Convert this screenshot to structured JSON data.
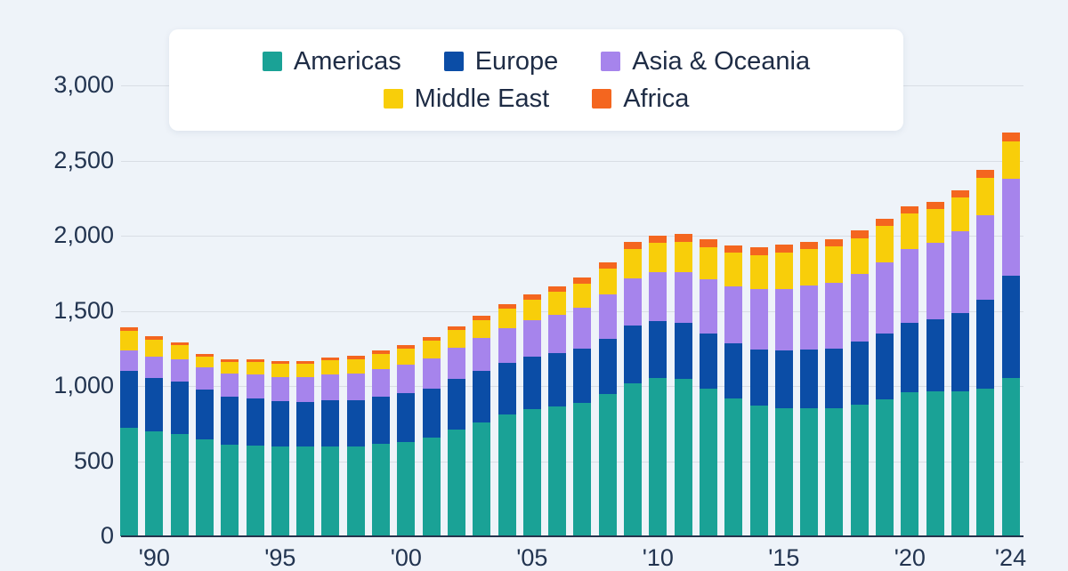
{
  "colors": {
    "background": "#eef3f9",
    "grid": "#d9dee5",
    "axis": "#24334d",
    "text": "#1e2c45",
    "americas": "#1aa296",
    "europe": "#0b4da6",
    "asia_oceania": "#a684ec",
    "middle_east": "#f8ce0a",
    "africa": "#f4661f"
  },
  "legend": {
    "rows": [
      [
        {
          "label": "Americas",
          "color": "#1aa296"
        },
        {
          "label": "Europe",
          "color": "#0b4da6"
        },
        {
          "label": "Asia & Oceania",
          "color": "#a684ec"
        }
      ],
      [
        {
          "label": "Middle East",
          "color": "#f8ce0a"
        },
        {
          "label": "Africa",
          "color": "#f4661f"
        }
      ]
    ]
  },
  "chart_data": {
    "type": "bar",
    "stacked": true,
    "title": "",
    "xlabel": "",
    "ylabel": "",
    "ylim": [
      0,
      3000
    ],
    "grid": "horizontal",
    "legend_position": "top",
    "x": [
      1989,
      1990,
      1991,
      1992,
      1993,
      1994,
      1995,
      1996,
      1997,
      1998,
      1999,
      2000,
      2001,
      2002,
      2003,
      2004,
      2005,
      2006,
      2007,
      2008,
      2009,
      2010,
      2011,
      2012,
      2013,
      2014,
      2015,
      2016,
      2017,
      2018,
      2019,
      2020,
      2021,
      2022,
      2023,
      2024
    ],
    "x_tick_labels": [
      {
        "year": 1990,
        "label": "'90"
      },
      {
        "year": 1995,
        "label": "'95"
      },
      {
        "year": 2000,
        "label": "'00"
      },
      {
        "year": 2005,
        "label": "'05"
      },
      {
        "year": 2010,
        "label": "'10"
      },
      {
        "year": 2015,
        "label": "'15"
      },
      {
        "year": 2020,
        "label": "'20"
      },
      {
        "year": 2024,
        "label": "'24"
      }
    ],
    "y_ticks": [
      {
        "value": 0,
        "label": "0"
      },
      {
        "value": 500,
        "label": "500"
      },
      {
        "value": 1000,
        "label": "1,000"
      },
      {
        "value": 1500,
        "label": "1,500"
      },
      {
        "value": 2000,
        "label": "2,000"
      },
      {
        "value": 2500,
        "label": "2,500"
      },
      {
        "value": 3000,
        "label": "3,000"
      }
    ],
    "series": [
      {
        "name": "Americas",
        "color": "#1aa296",
        "values": [
          720,
          700,
          680,
          645,
          610,
          605,
          600,
          595,
          600,
          595,
          615,
          630,
          655,
          710,
          760,
          810,
          845,
          865,
          885,
          945,
          1020,
          1055,
          1050,
          985,
          920,
          870,
          855,
          855,
          850,
          875,
          910,
          960,
          965,
          965,
          980,
          1055
        ]
      },
      {
        "name": "Europe",
        "color": "#0b4da6",
        "values": [
          380,
          355,
          350,
          330,
          320,
          310,
          300,
          300,
          305,
          310,
          315,
          320,
          330,
          335,
          340,
          345,
          350,
          355,
          365,
          370,
          380,
          375,
          370,
          365,
          365,
          375,
          380,
          390,
          400,
          420,
          440,
          460,
          480,
          520,
          595,
          680
        ]
      },
      {
        "name": "Asia & Oceania",
        "color": "#a684ec",
        "values": [
          135,
          140,
          145,
          150,
          155,
          160,
          160,
          165,
          170,
          175,
          180,
          190,
          200,
          210,
          220,
          230,
          240,
          255,
          270,
          295,
          315,
          325,
          340,
          360,
          380,
          400,
          410,
          425,
          435,
          450,
          470,
          490,
          505,
          545,
          560,
          645
        ]
      },
      {
        "name": "Middle East",
        "color": "#f8ce0a",
        "values": [
          130,
          115,
          95,
          70,
          75,
          85,
          85,
          90,
          95,
          100,
          105,
          110,
          115,
          115,
          120,
          130,
          140,
          150,
          160,
          170,
          195,
          195,
          200,
          215,
          220,
          225,
          245,
          240,
          245,
          240,
          245,
          235,
          225,
          225,
          250,
          250
        ]
      },
      {
        "name": "Africa",
        "color": "#f4661f",
        "values": [
          25,
          22,
          22,
          20,
          20,
          18,
          18,
          18,
          20,
          20,
          22,
          22,
          25,
          28,
          30,
          32,
          35,
          38,
          40,
          45,
          50,
          50,
          50,
          52,
          52,
          54,
          52,
          50,
          48,
          48,
          50,
          50,
          48,
          48,
          50,
          58
        ]
      }
    ]
  }
}
